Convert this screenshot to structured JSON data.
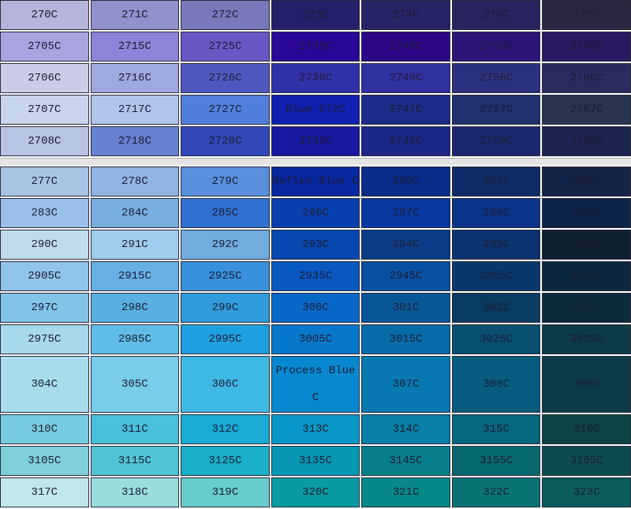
{
  "sections": [
    {
      "rows": [
        [
          {
            "label": "270C",
            "color": "#b4b4dc"
          },
          {
            "label": "271C",
            "color": "#9090cc"
          },
          {
            "label": "272C",
            "color": "#7878bc"
          },
          {
            "label": "273C",
            "color": "#24206c"
          },
          {
            "label": "274C",
            "color": "#282468"
          },
          {
            "label": "275C",
            "color": "#282460"
          },
          {
            "label": "276C",
            "color": "#2a2840"
          }
        ],
        [
          {
            "label": "2705C",
            "color": "#a8a4e0"
          },
          {
            "label": "2715C",
            "color": "#8c84d8"
          },
          {
            "label": "2725C",
            "color": "#6858c4"
          },
          {
            "label": "2735C",
            "color": "#2c0898"
          },
          {
            "label": "2745C",
            "color": "#2c0888"
          },
          {
            "label": "2755C",
            "color": "#2c1478"
          },
          {
            "label": "2765C",
            "color": "#2a1860"
          }
        ],
        [
          {
            "label": "2706C",
            "color": "#cccce8"
          },
          {
            "label": "2716C",
            "color": "#a0a8e0"
          },
          {
            "label": "2726C",
            "color": "#5058c0"
          },
          {
            "label": "2736C",
            "color": "#3030a8"
          },
          {
            "label": "2746C",
            "color": "#3030a0"
          },
          {
            "label": "2756C",
            "color": "#2c3080"
          },
          {
            "label": "2766C",
            "color": "#2a2c60"
          }
        ],
        [
          {
            "label": "2707C",
            "color": "#c8d4ec"
          },
          {
            "label": "2717C",
            "color": "#b0c4ec"
          },
          {
            "label": "2727C",
            "color": "#5080dc"
          },
          {
            "label": "Blue 072C",
            "color": "#1020b0"
          },
          {
            "label": "2747C",
            "color": "#1c2c88"
          },
          {
            "label": "2757C",
            "color": "#203070"
          },
          {
            "label": "2767C",
            "color": "#283450"
          }
        ],
        [
          {
            "label": "2708C",
            "color": "#b8c4e4"
          },
          {
            "label": "2718C",
            "color": "#6880d0"
          },
          {
            "label": "2728C",
            "color": "#3048b8"
          },
          {
            "label": "2738C",
            "color": "#1818a0"
          },
          {
            "label": "2748C",
            "color": "#1c2888"
          },
          {
            "label": "2758C",
            "color": "#1c2870"
          },
          {
            "label": "2768C",
            "color": "#1c2450"
          }
        ]
      ]
    },
    {
      "rows": [
        [
          {
            "label": "277C",
            "color": "#a8c4e4"
          },
          {
            "label": "278C",
            "color": "#90b4e4"
          },
          {
            "label": "279C",
            "color": "#5890dc"
          },
          {
            "label": "Reflex Blue C",
            "color": "#0828a0"
          },
          {
            "label": "280C",
            "color": "#082c88"
          },
          {
            "label": "281C",
            "color": "#102c68"
          },
          {
            "label": "282C",
            "color": "#142448"
          }
        ],
        [
          {
            "label": "283C",
            "color": "#98c0e8"
          },
          {
            "label": "284C",
            "color": "#78aee0"
          },
          {
            "label": "285C",
            "color": "#3070d0"
          },
          {
            "label": "286C",
            "color": "#0840b0"
          },
          {
            "label": "287C",
            "color": "#0838a0"
          },
          {
            "label": "288C",
            "color": "#0c3488"
          },
          {
            "label": "289C",
            "color": "#0c2448"
          }
        ],
        [
          {
            "label": "290C",
            "color": "#c0dcec"
          },
          {
            "label": "291C",
            "color": "#a0ccec"
          },
          {
            "label": "292C",
            "color": "#70ace0"
          },
          {
            "label": "293C",
            "color": "#0848b0"
          },
          {
            "label": "294C",
            "color": "#0c3c88"
          },
          {
            "label": "295C",
            "color": "#0c3470"
          },
          {
            "label": "296C",
            "color": "#102030"
          }
        ],
        [
          {
            "label": "2905C",
            "color": "#90c4e8"
          },
          {
            "label": "2915C",
            "color": "#68b0e4"
          },
          {
            "label": "2925C",
            "color": "#3890dc"
          },
          {
            "label": "2935C",
            "color": "#0858c0"
          },
          {
            "label": "2945C",
            "color": "#0850a0"
          },
          {
            "label": "2955C",
            "color": "#08386c"
          },
          {
            "label": "2965C",
            "color": "#0c2840"
          }
        ],
        [
          {
            "label": "297C",
            "color": "#80c4e8"
          },
          {
            "label": "298C",
            "color": "#58b0e0"
          },
          {
            "label": "299C",
            "color": "#309cdc"
          },
          {
            "label": "300C",
            "color": "#0868c8"
          },
          {
            "label": "301C",
            "color": "#085898"
          },
          {
            "label": "302C",
            "color": "#083c60"
          },
          {
            "label": "303C",
            "color": "#0c2c3c"
          }
        ],
        [
          {
            "label": "2975C",
            "color": "#a8d8ec"
          },
          {
            "label": "2985C",
            "color": "#60bce8"
          },
          {
            "label": "2995C",
            "color": "#20a0e0"
          },
          {
            "label": "3005C",
            "color": "#0878cc"
          },
          {
            "label": "3015C",
            "color": "#086ca8"
          },
          {
            "label": "3025C",
            "color": "#085070"
          },
          {
            "label": "3035C",
            "color": "#0c3c48"
          }
        ],
        [
          {
            "label": "304C",
            "color": "#a8dcec"
          },
          {
            "label": "305C",
            "color": "#78cce8"
          },
          {
            "label": "306C",
            "color": "#40b8e4"
          },
          {
            "label": "Process Blue C",
            "color": "#0888d0"
          },
          {
            "label": "307C",
            "color": "#0878b0"
          },
          {
            "label": "308C",
            "color": "#085c80"
          },
          {
            "label": "309C",
            "color": "#0c3c48"
          }
        ],
        [
          {
            "label": "310C",
            "color": "#78cce0"
          },
          {
            "label": "311C",
            "color": "#48c0dc"
          },
          {
            "label": "312C",
            "color": "#18acd4"
          },
          {
            "label": "313C",
            "color": "#0898c8"
          },
          {
            "label": "314C",
            "color": "#0880a8"
          },
          {
            "label": "315C",
            "color": "#086880"
          },
          {
            "label": "316C",
            "color": "#0c4444"
          }
        ],
        [
          {
            "label": "3105C",
            "color": "#80d0dc"
          },
          {
            "label": "3115C",
            "color": "#50c4d4"
          },
          {
            "label": "3125C",
            "color": "#18b0c8"
          },
          {
            "label": "3135C",
            "color": "#0898b4"
          },
          {
            "label": "3145C",
            "color": "#08808c"
          },
          {
            "label": "3155C",
            "color": "#086870"
          },
          {
            "label": "3165C",
            "color": "#0c4c50"
          }
        ],
        [
          {
            "label": "317C",
            "color": "#c0e8e8"
          },
          {
            "label": "318C",
            "color": "#98dcdc"
          },
          {
            "label": "319C",
            "color": "#68cccc"
          },
          {
            "label": "320C",
            "color": "#089ca0"
          },
          {
            "label": "321C",
            "color": "#088888"
          },
          {
            "label": "322C",
            "color": "#087474"
          },
          {
            "label": "323C",
            "color": "#0c5c5c"
          }
        ]
      ]
    }
  ]
}
